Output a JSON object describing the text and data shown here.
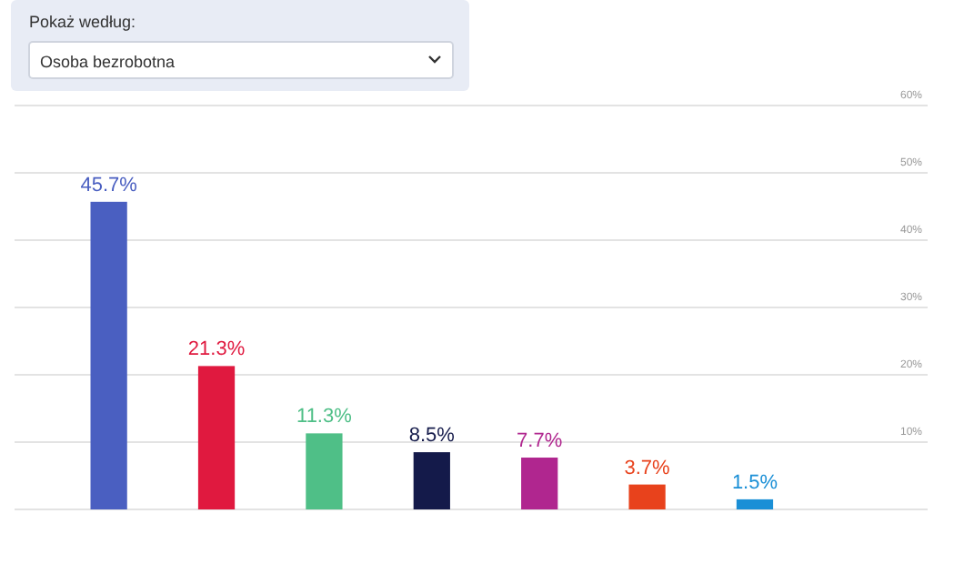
{
  "chart_data": {
    "type": "bar",
    "categories": [
      null,
      null,
      null,
      null,
      null,
      null,
      null,
      null
    ],
    "values": [
      45.7,
      21.3,
      11.3,
      8.5,
      7.7,
      3.7,
      1.5,
      null
    ],
    "colors": [
      "#4a5fc1",
      "#e0193f",
      "#4fbf87",
      "#141a4a",
      "#b0268f",
      "#e8421c",
      "#1a8fd6",
      null
    ],
    "value_labels": [
      "45.7%",
      "21.3%",
      "11.3%",
      "8.5%",
      "7.7%",
      "3.7%",
      "1.5%",
      null
    ],
    "ylim": [
      0,
      60
    ],
    "yticks": [
      {
        "value": 0,
        "label": null
      },
      {
        "value": 10,
        "label": "10%"
      },
      {
        "value": 20,
        "label": "20%"
      },
      {
        "value": 30,
        "label": "30%"
      },
      {
        "value": 40,
        "label": "40%"
      },
      {
        "value": 50,
        "label": "50%"
      },
      {
        "value": 60,
        "label": "60%"
      }
    ],
    "grid": "y",
    "annotations": [
      "Pokaż według:",
      "Osoba bezrobotna"
    ]
  }
}
